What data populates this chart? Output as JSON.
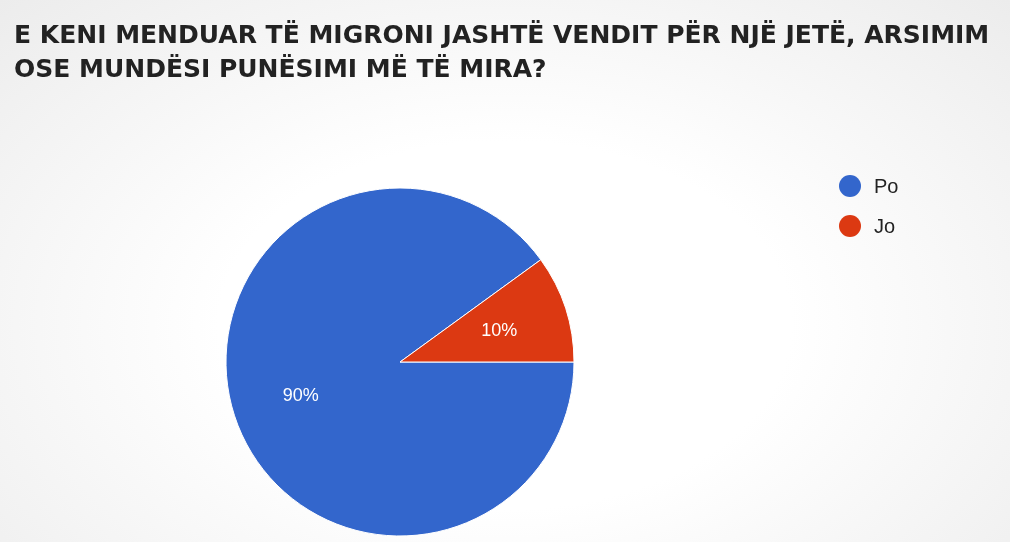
{
  "chart_data": {
    "type": "pie",
    "title": "E KENI MENDUAR TË MIGRONI JASHTË VENDIT PËR NJË JETË, ARSIMIM OSE MUNDËSI PUNËSIMI MË TË MIRA?",
    "categories": [
      "Po",
      "Jo"
    ],
    "values": [
      90,
      10
    ],
    "colors": [
      "#3366cc",
      "#dc3912"
    ],
    "value_labels": [
      "90%",
      "10%"
    ],
    "legend": "top right"
  }
}
